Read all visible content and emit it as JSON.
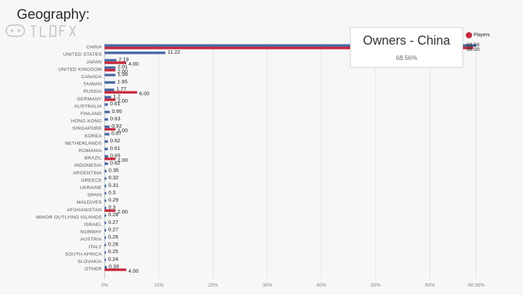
{
  "page": {
    "heading": "Geography:"
  },
  "tooltip": {
    "title": "Owners - China",
    "value": "68.56%"
  },
  "legend": {
    "label": "Players",
    "color": "#c7293f"
  },
  "colors": {
    "owners": "#4a6aa5",
    "players": "#c7293f",
    "axis_text": "#8a8a8a",
    "category_text": "#555555"
  },
  "chart_data": {
    "type": "bar",
    "orientation": "horizontal",
    "title": "Geography:",
    "xlim": [
      0,
      68.56
    ],
    "x_ticks": [
      "0%",
      "10%",
      "20%",
      "30%",
      "40%",
      "50%",
      "60%",
      "68.56%"
    ],
    "x_tick_values": [
      0,
      10,
      20,
      30,
      40,
      50,
      60,
      68.56
    ],
    "categories": [
      "CHINA",
      "UNITED STATES",
      "JAPAN",
      "UNITED KINGDOM",
      "CANADA",
      "TAIWAN",
      "RUSSIA",
      "GERMANY",
      "AUSTRALIA",
      "FINLAND",
      "HONG KONG",
      "SINGAPORE",
      "KOREA",
      "NETHERLANDS",
      "ROMANIA",
      "BRAZIL",
      "INDONESIA",
      "ARGENTINA",
      "GREECE",
      "UKRAINE",
      "SPAIN",
      "MALDIVES",
      "AFGHANISTAN",
      "MINOR OUTLYING ISLANDS",
      "ISRAEL",
      "NORWAY",
      "AUSTRIA",
      "ITALY",
      "SOUTH AFRICA",
      "SLOVAKIA",
      "OTHER"
    ],
    "series": [
      {
        "name": "Owners",
        "values": [
          68.56,
          11.22,
          2.19,
          2.01,
          1.99,
          1.95,
          1.77,
          1.2,
          0.61,
          0.95,
          0.63,
          0.92,
          0.87,
          0.62,
          0.61,
          0.65,
          0.62,
          0.35,
          0.32,
          0.31,
          0.3,
          0.29,
          0.3,
          0.28,
          0.27,
          0.27,
          0.26,
          0.26,
          0.25,
          0.24,
          0.39
        ],
        "labels": [
          "68.56",
          "11.22",
          "2.19",
          "2.01",
          "1.99",
          "1.95",
          "1.77",
          "1.2",
          "0.61",
          "0.95",
          "0.63",
          "0.92",
          "0.87",
          "0.62",
          "0.61",
          "0.65",
          "0.62",
          "0.35",
          "0.32",
          "0.31",
          "0.3",
          "0.29",
          "0.3",
          "0.28",
          "0.27",
          "0.27",
          "0.26",
          "0.26",
          "0.25",
          "0.24",
          "0.39"
        ]
      },
      {
        "name": "Players",
        "values": [
          68.0,
          0,
          4.0,
          2.0,
          0,
          0,
          6.0,
          2.0,
          0,
          0,
          0,
          2.0,
          0,
          0,
          0,
          2.0,
          0,
          0,
          0,
          0,
          0,
          0,
          2.0,
          0,
          0,
          0,
          0,
          0,
          0,
          0,
          4.0
        ],
        "labels": [
          "68.00",
          "",
          "4.00",
          "2.00",
          "",
          "",
          "6.00",
          "2.00",
          "",
          "",
          "",
          "2.00",
          "",
          "",
          "",
          "2.00",
          "",
          "",
          "",
          "",
          "",
          "",
          "2.00",
          "",
          "",
          "",
          "",
          "",
          "",
          "",
          "4.00"
        ]
      }
    ]
  }
}
